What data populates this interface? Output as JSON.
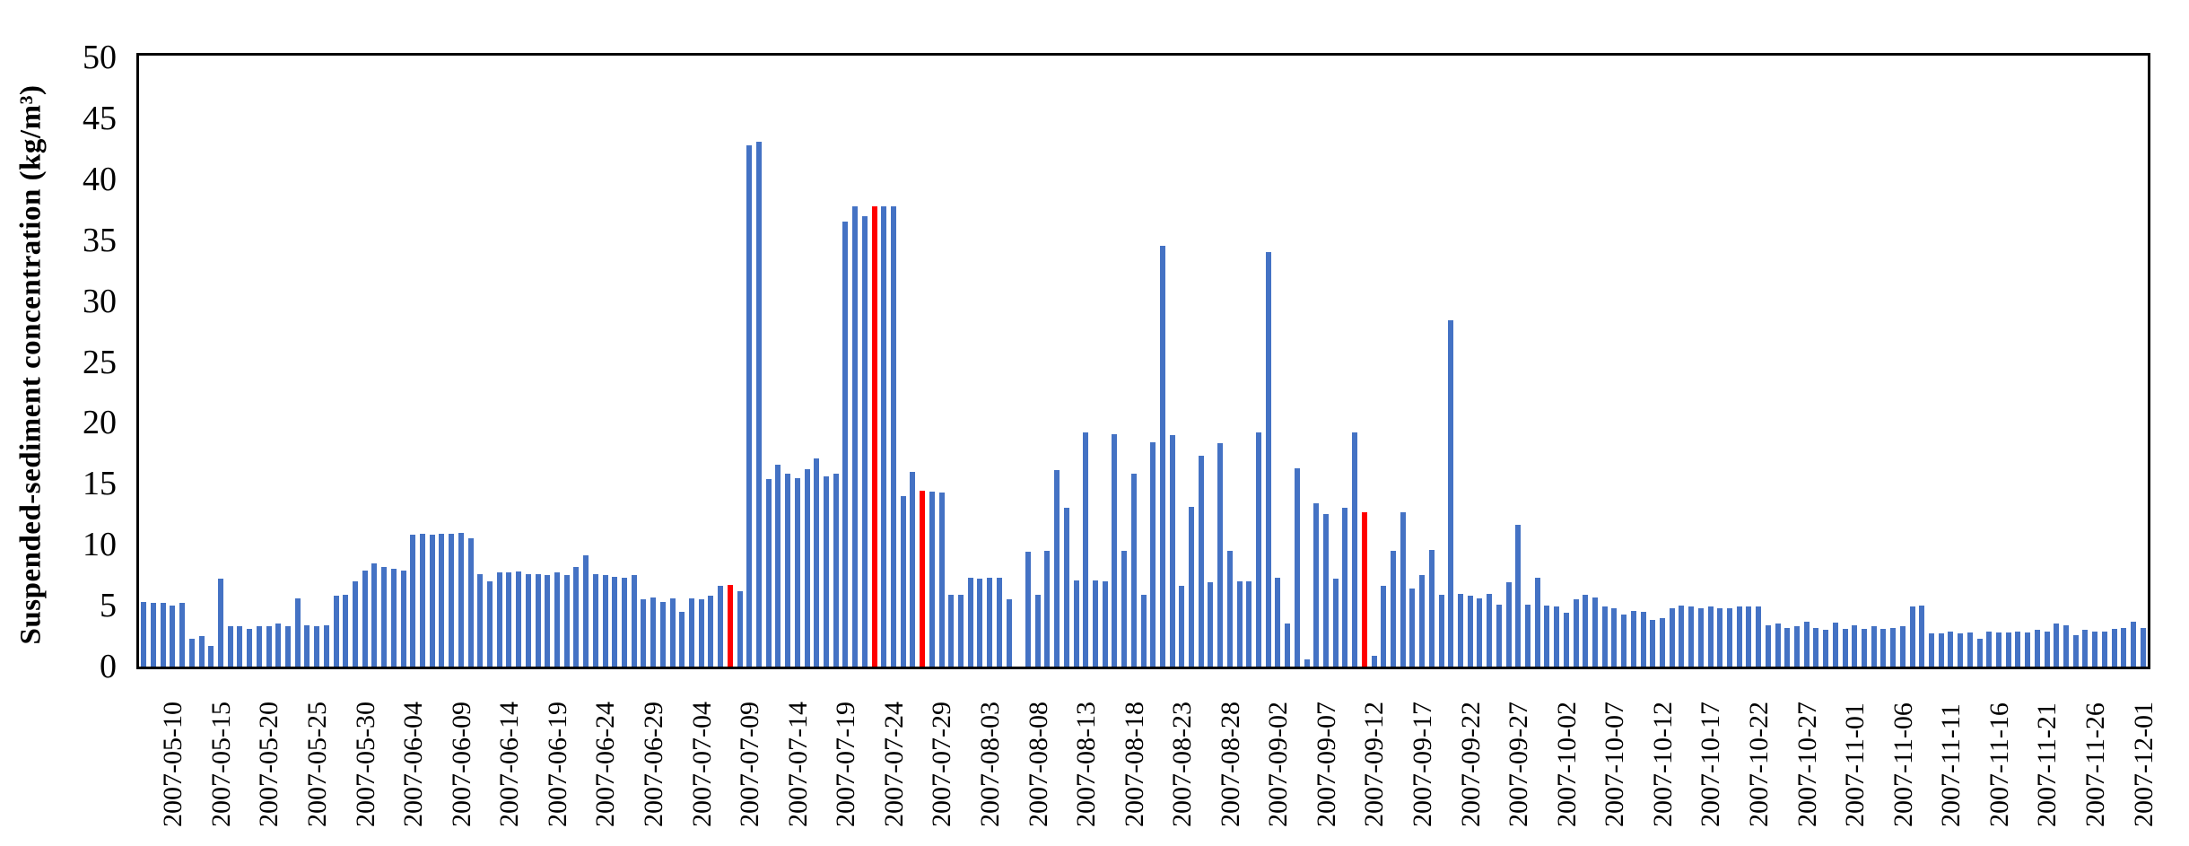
{
  "chart_data": {
    "type": "bar",
    "title": "",
    "ylabel": "Suspended-sediment concentration (kg/m³)",
    "xlabel": "",
    "ylim": [
      0,
      50
    ],
    "y_ticks": [
      0,
      5,
      10,
      15,
      20,
      25,
      30,
      35,
      40,
      45,
      50
    ],
    "grid": false,
    "legend_position": "none",
    "bar_color": "#4472C4",
    "highlight_color": "#FF0000",
    "axis_color": "#000000",
    "start_date": "2007-05-10",
    "end_date": "2007-12-04",
    "x_tick_interval_days": 5,
    "x_tick_labels": [
      "2007-05-10",
      "2007-05-15",
      "2007-05-20",
      "2007-05-25",
      "2007-05-30",
      "2007-06-04",
      "2007-06-09",
      "2007-06-14",
      "2007-06-19",
      "2007-06-24",
      "2007-06-29",
      "2007-07-04",
      "2007-07-09",
      "2007-07-14",
      "2007-07-19",
      "2007-07-24",
      "2007-07-29",
      "2007-08-03",
      "2007-08-08",
      "2007-08-13",
      "2007-08-18",
      "2007-08-23",
      "2007-08-28",
      "2007-09-02",
      "2007-09-07",
      "2007-09-12",
      "2007-09-17",
      "2007-09-22",
      "2007-09-27",
      "2007-10-02",
      "2007-10-07",
      "2007-10-12",
      "2007-10-17",
      "2007-10-22",
      "2007-10-27",
      "2007-11-01",
      "2007-11-06",
      "2007-11-11",
      "2007-11-16",
      "2007-11-21",
      "2007-11-26",
      "2007-12-01"
    ],
    "values": [
      5.3,
      5.2,
      5.2,
      5.0,
      5.2,
      2.3,
      2.5,
      1.7,
      7.2,
      3.3,
      3.3,
      3.1,
      3.3,
      3.3,
      3.5,
      3.3,
      5.6,
      3.4,
      3.3,
      3.4,
      5.8,
      5.9,
      7.0,
      7.9,
      8.5,
      8.2,
      8.0,
      7.9,
      10.8,
      10.9,
      10.8,
      10.9,
      10.9,
      11.0,
      10.5,
      7.6,
      7.0,
      7.7,
      7.7,
      7.8,
      7.6,
      7.6,
      7.5,
      7.7,
      7.5,
      8.2,
      9.1,
      7.6,
      7.5,
      7.4,
      7.3,
      7.5,
      5.5,
      5.7,
      5.3,
      5.6,
      4.5,
      5.6,
      5.5,
      5.8,
      6.6,
      6.7,
      6.2,
      42.8,
      43.1,
      15.4,
      16.6,
      15.8,
      15.5,
      16.2,
      17.1,
      15.6,
      15.8,
      36.5,
      37.8,
      37.0,
      37.8,
      37.8,
      37.8,
      14.0,
      16.0,
      14.4,
      14.35,
      14.3,
      5.9,
      5.9,
      7.3,
      7.2,
      7.3,
      7.3,
      5.5,
      null,
      9.4,
      5.9,
      9.5,
      16.1,
      13.0,
      7.1,
      19.2,
      7.1,
      7.0,
      19.1,
      9.5,
      15.8,
      5.9,
      18.4,
      34.5,
      19.0,
      6.6,
      13.1,
      17.3,
      6.9,
      18.3,
      9.5,
      7.0,
      7.0,
      19.2,
      34.0,
      7.3,
      3.55,
      16.3,
      0.56,
      13.4,
      12.5,
      7.25,
      13.0,
      19.2,
      12.7,
      0.88,
      6.6,
      9.5,
      12.7,
      6.4,
      7.5,
      9.6,
      5.9,
      28.4,
      6.0,
      5.8,
      5.6,
      6.0,
      5.1,
      6.9,
      11.6,
      5.1,
      7.3,
      5.0,
      4.9,
      4.45,
      5.5,
      5.9,
      5.7,
      4.9,
      4.8,
      4.3,
      4.6,
      4.5,
      3.8,
      4.0,
      4.8,
      5.0,
      4.9,
      4.8,
      4.9,
      4.8,
      4.8,
      4.9,
      4.9,
      4.9,
      3.4,
      3.5,
      3.2,
      3.3,
      3.65,
      3.2,
      3.0,
      3.6,
      3.1,
      3.4,
      3.1,
      3.3,
      3.1,
      3.2,
      3.3,
      4.9,
      5.0,
      2.7,
      2.7,
      2.9,
      2.7,
      2.8,
      2.3,
      2.9,
      2.8,
      2.8,
      2.9,
      2.8,
      3.0,
      2.9,
      3.55,
      3.4,
      2.6,
      3.0,
      2.9,
      2.9,
      3.1,
      3.2,
      3.65,
      3.2
    ],
    "highlighted_indices": [
      61,
      76,
      81,
      127
    ],
    "highlighted_dates": [
      "2007-07-10",
      "2007-07-25",
      "2007-07-30",
      "2007-09-14"
    ],
    "missing_dates": [
      "2007-08-09"
    ]
  }
}
